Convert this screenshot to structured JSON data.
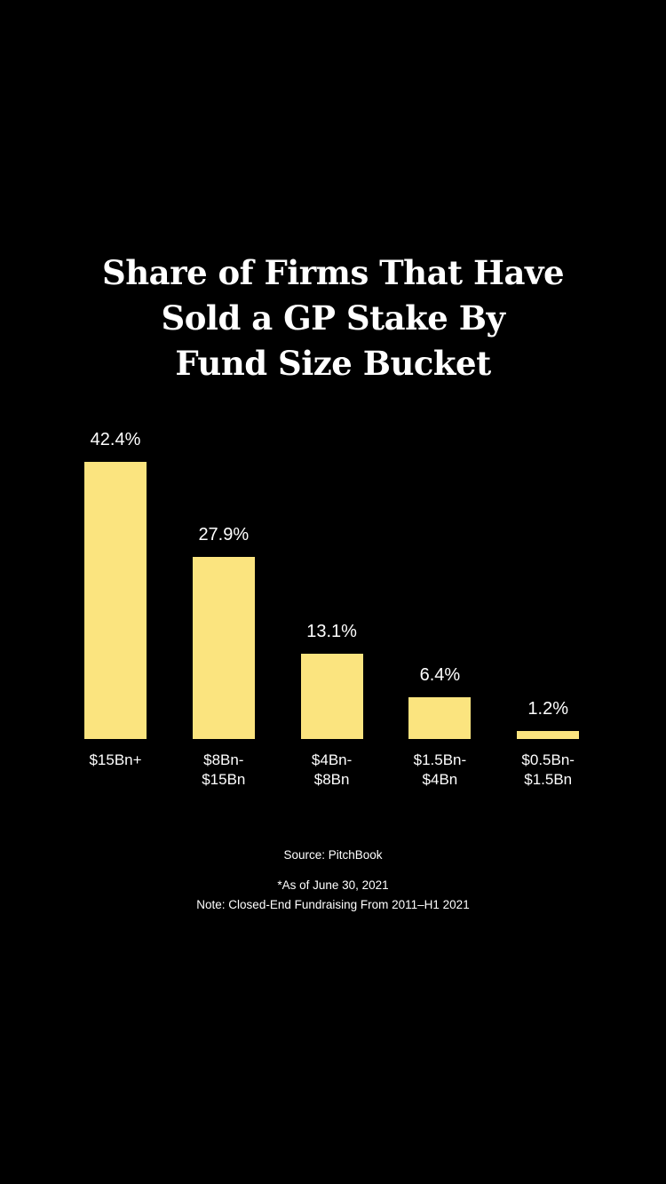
{
  "chart_data": {
    "type": "bar",
    "title": "Share of Firms That Have\nSold a GP Stake By\nFund Size Bucket",
    "categories": [
      "$15Bn+",
      "$8Bn-\n$15Bn",
      "$4Bn-\n$8Bn",
      "$1.5Bn-\n$4Bn",
      "$0.5Bn-\n$1.5Bn"
    ],
    "values": [
      42.4,
      27.9,
      13.1,
      6.4,
      1.2
    ],
    "value_labels": [
      "42.4%",
      "27.9%",
      "13.1%",
      "6.4%",
      "1.2%"
    ],
    "color": "#fbe47f",
    "source": "Source: PitchBook",
    "notes": [
      "*As of June 30, 2021",
      "Note: Closed-End Fundraising From 2011–H1 2021"
    ]
  }
}
